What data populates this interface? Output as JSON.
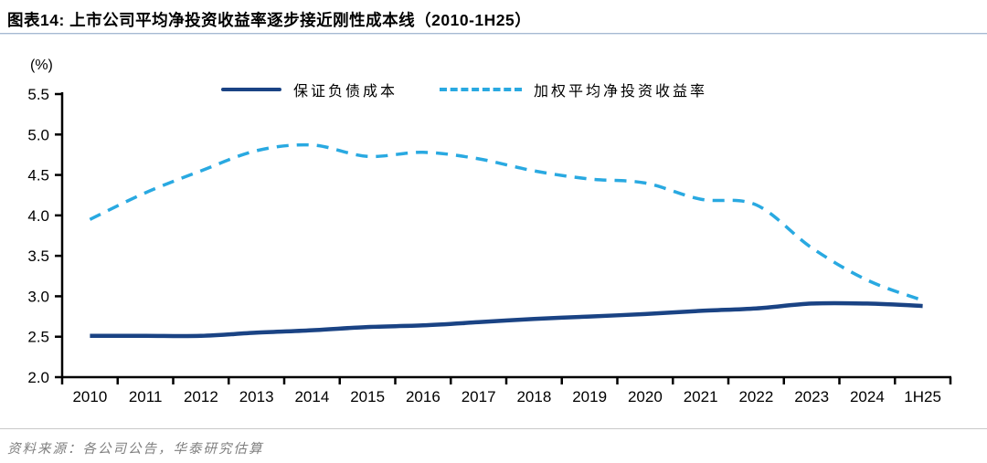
{
  "header": {
    "title": "图表14:  上市公司平均净投资收益率逐步接近刚性成本线（2010-1H25）"
  },
  "chart_data": {
    "type": "line",
    "unit_label": "(%)",
    "categories": [
      "2010",
      "2011",
      "2012",
      "2013",
      "2014",
      "2015",
      "2016",
      "2017",
      "2018",
      "2019",
      "2020",
      "2021",
      "2022",
      "2023",
      "2024",
      "1H25"
    ],
    "series": [
      {
        "name": "保证负债成本",
        "style": "solid",
        "color": "#1a4384",
        "values": [
          2.51,
          2.51,
          2.51,
          2.55,
          2.58,
          2.62,
          2.64,
          2.68,
          2.72,
          2.75,
          2.78,
          2.82,
          2.85,
          2.91,
          2.91,
          2.88
        ]
      },
      {
        "name": "加权平均净投资收益率",
        "style": "dashed",
        "color": "#29a9e1",
        "values": [
          3.95,
          4.28,
          4.55,
          4.8,
          4.87,
          4.73,
          4.78,
          4.7,
          4.55,
          4.45,
          4.4,
          4.2,
          4.13,
          3.6,
          3.2,
          2.95
        ]
      }
    ],
    "ylim": [
      2.0,
      5.5
    ],
    "ytick_step": 0.5,
    "grid": false,
    "legend_position": "top-center",
    "axis_color": "#000000"
  },
  "footer": {
    "source": "资料来源：各公司公告，华泰研究估算"
  },
  "colors": {
    "title_underline": "#a6b9d2",
    "footer_divider": "#c9c9c9",
    "source_text": "#7f7f7f"
  }
}
